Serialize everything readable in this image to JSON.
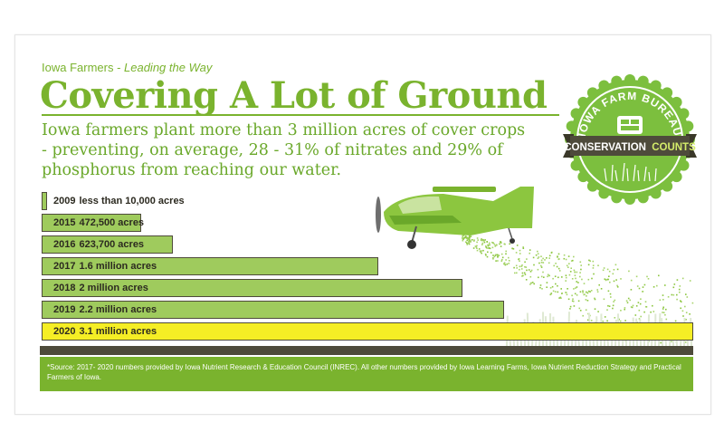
{
  "header": {
    "kicker_plain": "Iowa Farmers - ",
    "kicker_italic": "Leading the Way",
    "title": "Covering A Lot of Ground",
    "lead": "Iowa farmers plant more than 3 million acres of cover crops - preventing, on average, 28 - 31% of nitrates and 29% of phosphorus from reaching our water."
  },
  "badge": {
    "arc_text": "IOWA FARM BUREAU",
    "ribbon_left": "CONSERVATION",
    "ribbon_right": "COUNTS"
  },
  "chart_data": {
    "type": "bar",
    "orientation": "horizontal",
    "categories": [
      "2009",
      "2015",
      "2016",
      "2017",
      "2018",
      "2019",
      "2020"
    ],
    "values": [
      10000,
      472500,
      623700,
      1600000,
      2000000,
      2200000,
      3100000
    ],
    "labels": [
      "less than 10,000 acres",
      "472,500 acres",
      "623,700 acres",
      "1.6 million acres",
      "2 million acres",
      "2.2 million acres",
      "3.1 million acres"
    ],
    "highlight": "2020",
    "xlim": [
      0,
      3100000
    ],
    "grid": false,
    "colors": {
      "bar": "#9fcb5d",
      "highlight": "#f5ee25",
      "border": "#4e4b3b"
    }
  },
  "footer": {
    "source": "*Source: 2017- 2020 numbers provided by Iowa Nutrient Research & Education Council (INREC).  All other numbers provided by Iowa Learning Farms, Iowa Nutrient Reduction Strategy and Practical Farmers of Iowa."
  },
  "colors": {
    "brand_green": "#7ab32e",
    "dark": "#4e4b3b",
    "badge_green": "#7cbf3e"
  }
}
